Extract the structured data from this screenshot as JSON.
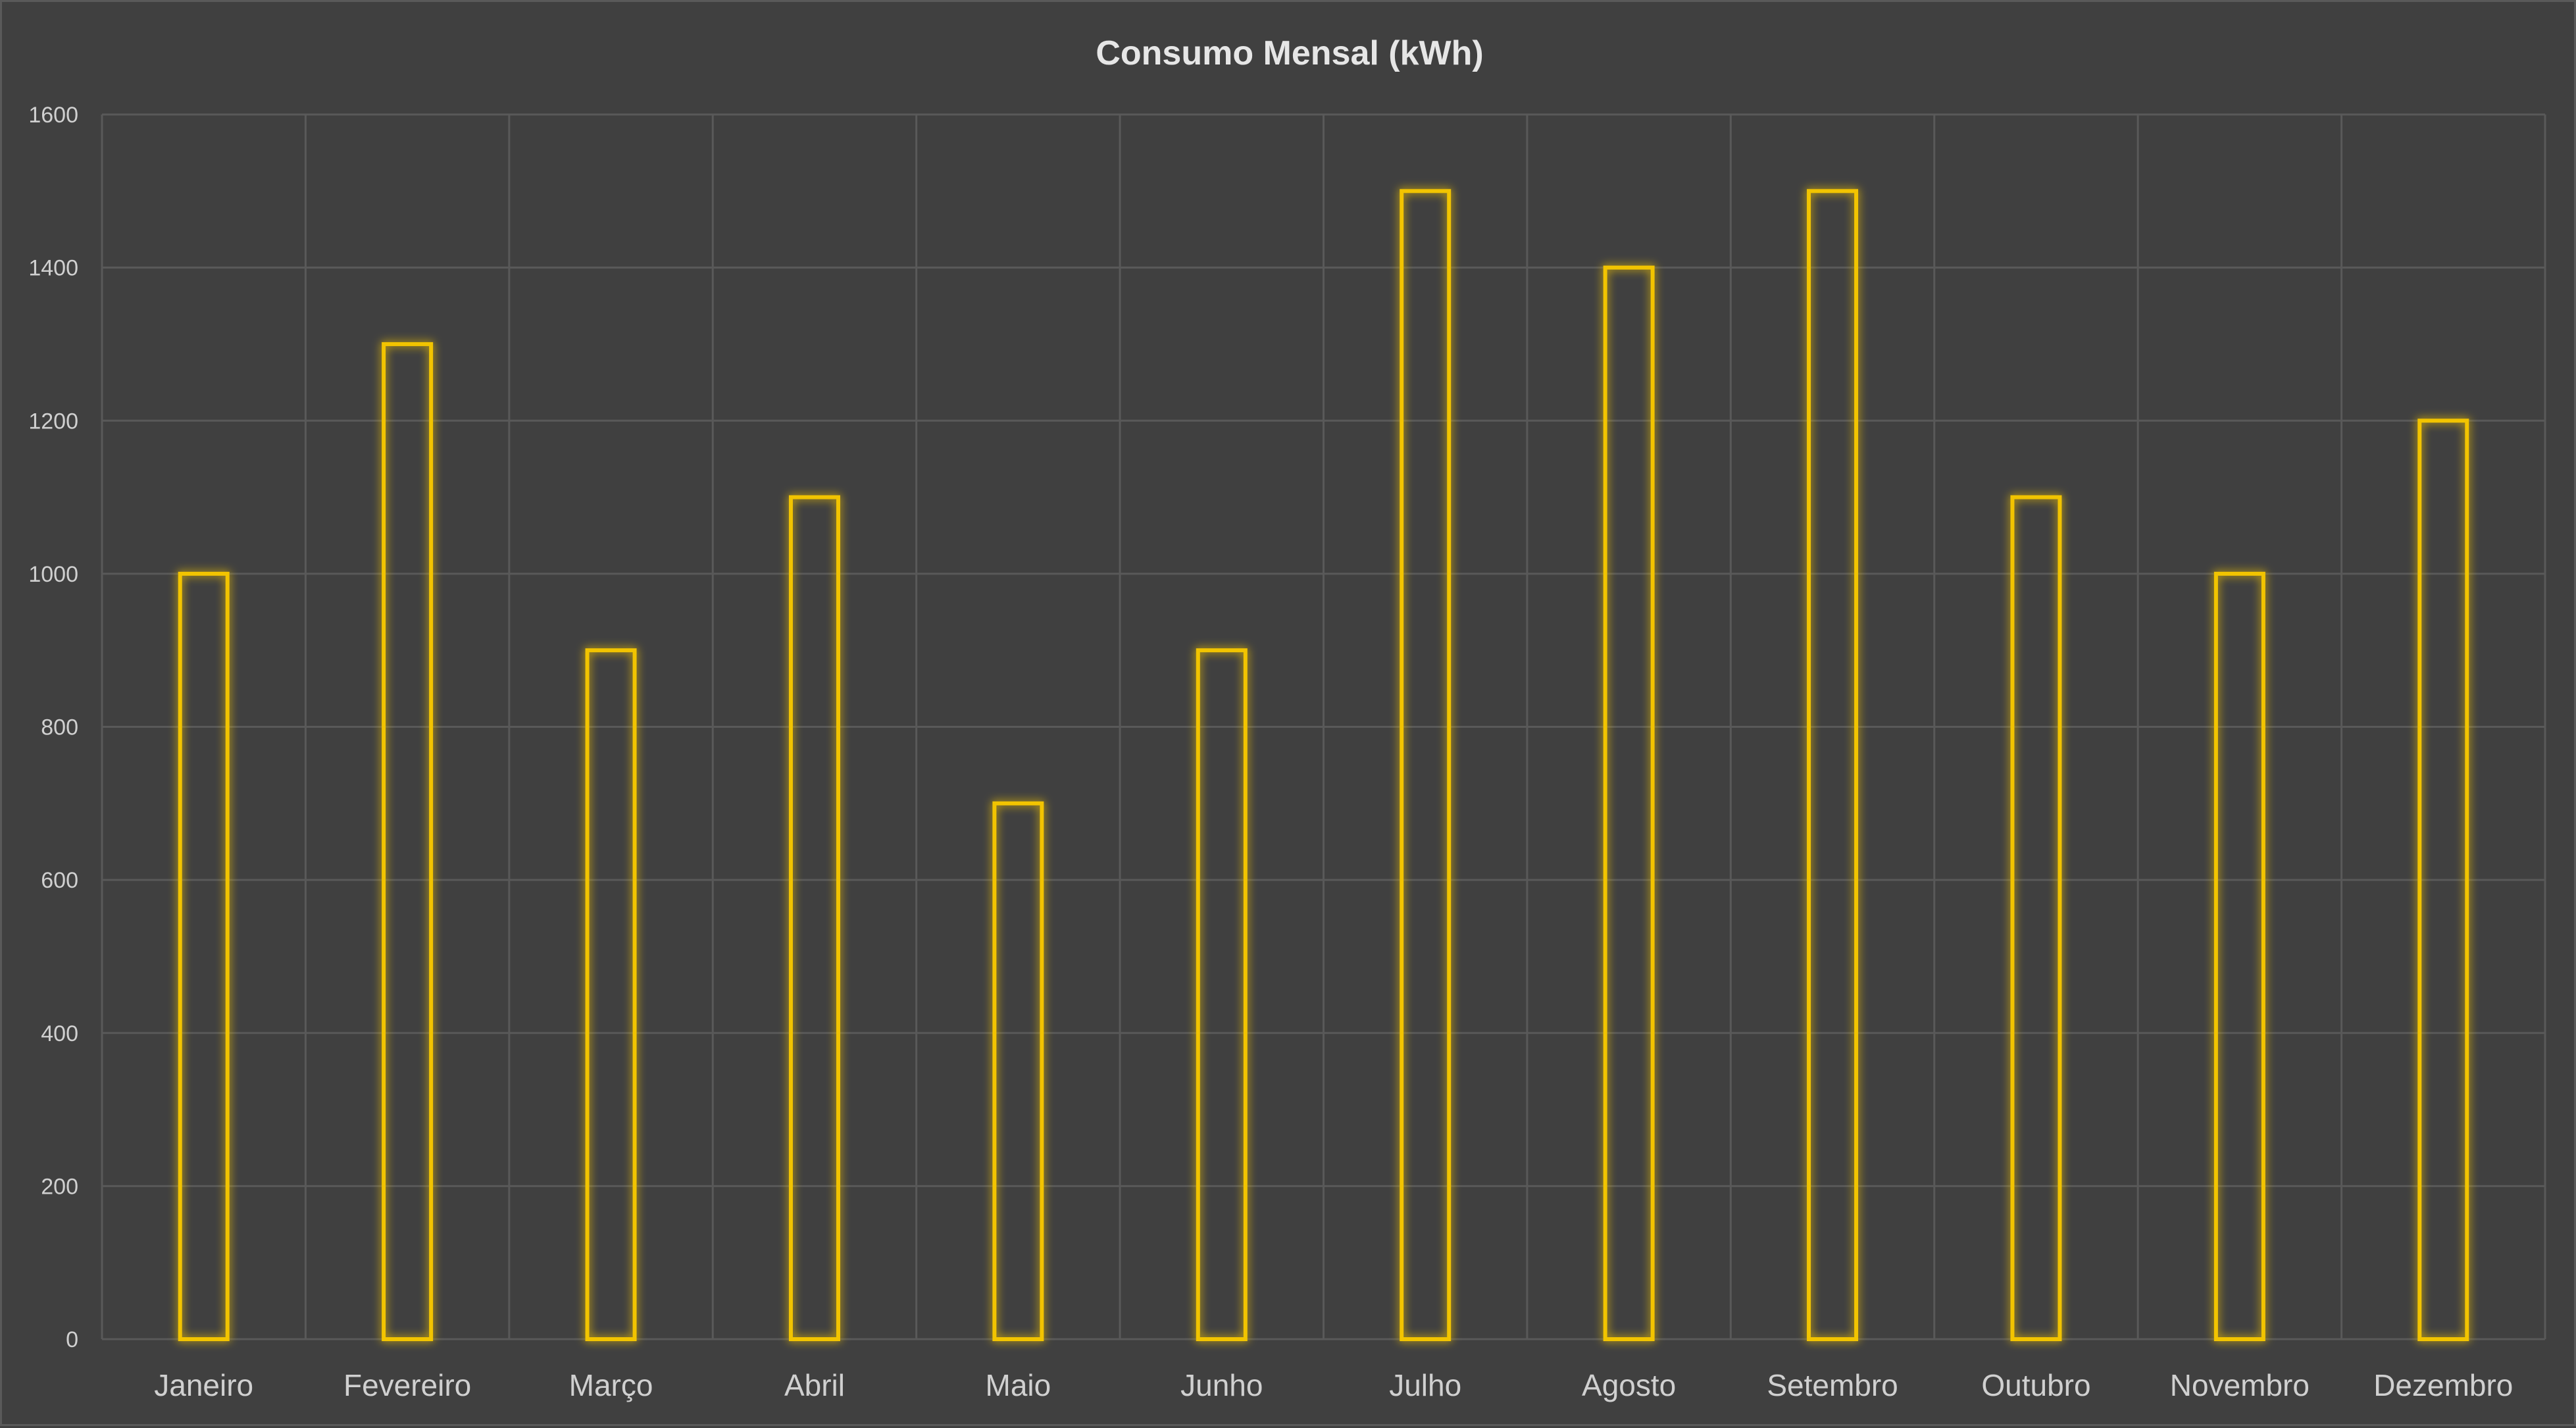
{
  "chart_data": {
    "type": "bar",
    "title": "Consumo Mensal (kWh)",
    "xlabel": "",
    "ylabel": "",
    "categories": [
      "Janeiro",
      "Fevereiro",
      "Março",
      "Abril",
      "Maio",
      "Junho",
      "Julho",
      "Agosto",
      "Setembro",
      "Outubro",
      "Novembro",
      "Dezembro"
    ],
    "values": [
      1000,
      1300,
      900,
      1100,
      700,
      900,
      1500,
      1400,
      1500,
      1100,
      1000,
      1200
    ],
    "ylim": [
      0,
      1600
    ],
    "yticks": [
      0,
      200,
      400,
      600,
      800,
      1000,
      1200,
      1400,
      1600
    ],
    "grid": true,
    "legend": "none",
    "colors": {
      "background": "#404040",
      "bar_outline": "#f2c400",
      "grid": "#595959",
      "text": "#d0d0d0"
    }
  }
}
